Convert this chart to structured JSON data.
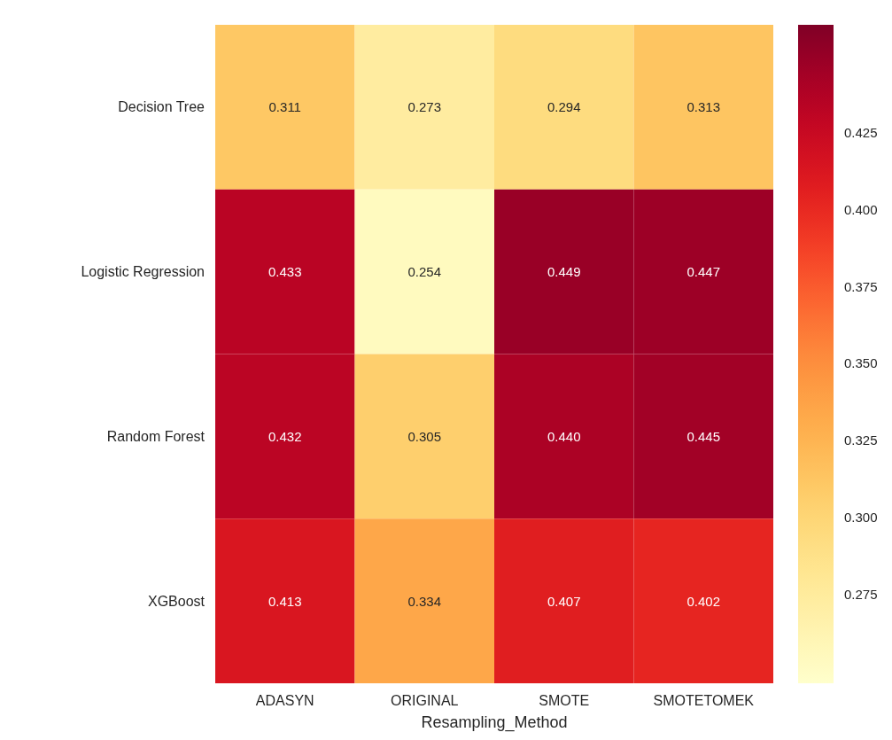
{
  "chart_data": {
    "type": "heatmap",
    "xlabel": "Resampling_Method",
    "categories": [
      "ADASYN",
      "ORIGINAL",
      "SMOTE",
      "SMOTETOMEK"
    ],
    "y_categories": [
      "Decision Tree",
      "Logistic Regression",
      "Random Forest",
      "XGBoost"
    ],
    "cells": [
      [
        0.311,
        0.273,
        0.294,
        0.313
      ],
      [
        0.433,
        0.254,
        0.449,
        0.447
      ],
      [
        0.432,
        0.305,
        0.44,
        0.445
      ],
      [
        0.413,
        0.334,
        0.407,
        0.402
      ]
    ],
    "cell_labels": [
      [
        "0.311",
        "0.273",
        "0.294",
        "0.313"
      ],
      [
        "0.433",
        "0.254",
        "0.449",
        "0.447"
      ],
      [
        "0.432",
        "0.305",
        "0.440",
        "0.445"
      ],
      [
        "0.413",
        "0.334",
        "0.407",
        "0.402"
      ]
    ],
    "clim": [
      0.246,
      0.46
    ],
    "cticks": [
      0.275,
      {
        "value": 0.3,
        "label": "0.300"
      },
      0.325,
      {
        "value": 0.35,
        "label": "0.350"
      },
      0.375,
      {
        "value": 0.4,
        "label": "0.400"
      },
      0.425
    ]
  }
}
